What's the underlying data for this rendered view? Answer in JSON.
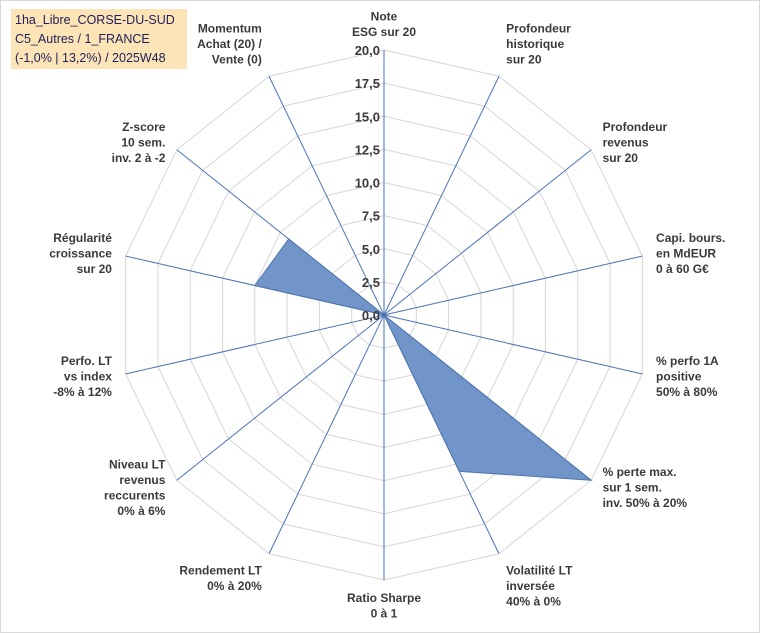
{
  "title_box": {
    "line1": "1ha_Libre_CORSE-DU-SUD",
    "line2": "C5_Autres / 1_FRANCE",
    "line3": "(-1,0% | 13,2%) / 2025W48"
  },
  "colors": {
    "fill": "#6a8fc6",
    "stroke": "#4f74ad",
    "grid": "#d6d6d6",
    "spoke": "#4a72b8",
    "title_bg": "#fce4b6"
  },
  "chart_data": {
    "type": "radar",
    "rmin": 0,
    "rmax": 20,
    "tick_step": 2.5,
    "tick_labels": [
      "0,0",
      "2,5",
      "5,0",
      "7,5",
      "10,0",
      "12,5",
      "15,0",
      "17,5",
      "20,0"
    ],
    "axes": [
      {
        "label": [
          "Note",
          "ESG sur 20"
        ],
        "value": 0
      },
      {
        "label": [
          "Profondeur",
          "historique",
          "sur 20"
        ],
        "value": 0
      },
      {
        "label": [
          "Profondeur",
          "revenus",
          "sur 20"
        ],
        "value": 0
      },
      {
        "label": [
          "Capi. bours.",
          "en MdEUR",
          "0 à 60 G€"
        ],
        "value": 0
      },
      {
        "label": [
          "% perfo 1A",
          "positive",
          "50% à 80%"
        ],
        "value": 0
      },
      {
        "label": [
          "% perte max.",
          "sur 1 sem.",
          "inv. 50% à 20%"
        ],
        "value": 20
      },
      {
        "label": [
          "Volatilité LT",
          "inversée",
          "40% à 0%"
        ],
        "value": 13.1
      },
      {
        "label": [
          "Ratio Sharpe",
          "0 à 1"
        ],
        "value": 0
      },
      {
        "label": [
          "Rendement LT",
          "0% à 20%"
        ],
        "value": 0
      },
      {
        "label": [
          "Niveau LT",
          "revenus",
          "reccurents",
          "0% à 6%"
        ],
        "value": 0
      },
      {
        "label": [
          "Perfo. LT",
          "vs index",
          "-8% à 12%"
        ],
        "value": 0
      },
      {
        "label": [
          "Régularité",
          "croissance",
          "sur 20"
        ],
        "value": 10
      },
      {
        "label": [
          "Z-score",
          "10 sem.",
          "inv. 2 à -2"
        ],
        "value": 9.2
      },
      {
        "label": [
          "Momentum",
          "Achat (20) /",
          "Vente (0)"
        ],
        "value": 0
      }
    ]
  }
}
